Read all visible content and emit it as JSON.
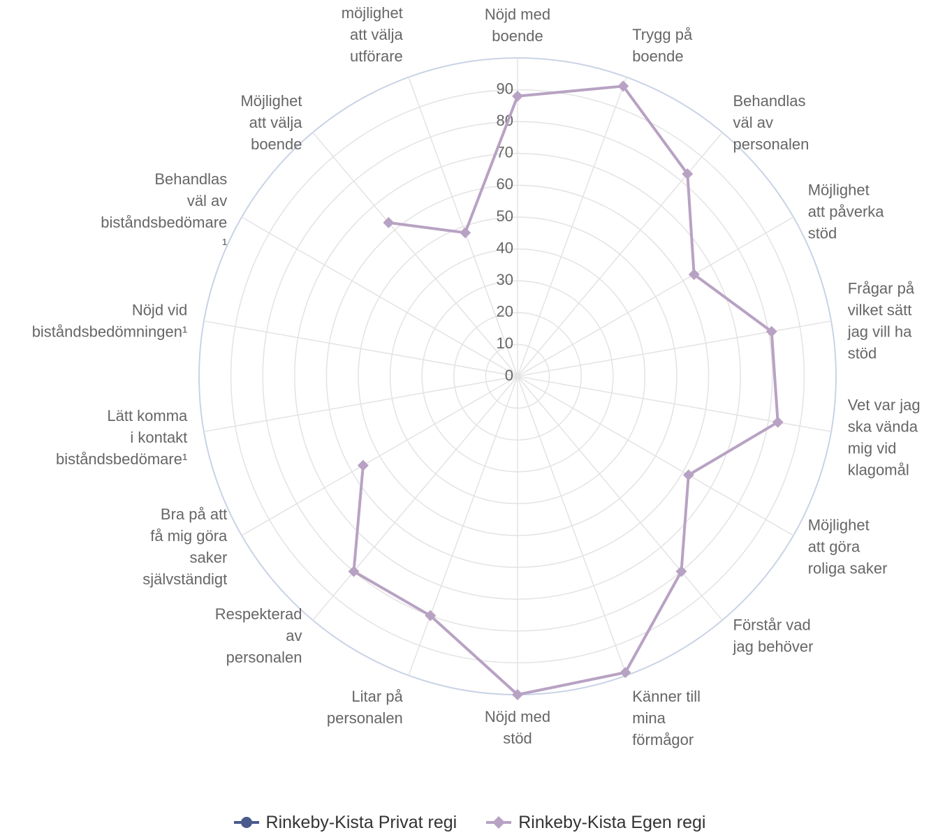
{
  "chart_data": {
    "type": "radar",
    "title": "",
    "categories": [
      "Nöjd med boende",
      "Trygg på boende",
      "Behandlas väl av personalen",
      "Möjlighet att påverka stöd",
      "Frågar på vilket sätt jag vill ha stöd",
      "Vet var jag ska vända mig vid klagomål",
      "Möjlighet att göra roliga saker",
      "Förstår vad jag behöver",
      "Känner till mina förmågor",
      "Nöjd med stöd",
      "Litar på personalen",
      "Respekterad av personalen",
      "Bra på att få mig göra saker självständigt",
      "Lätt komma i kontakt biståndsbedömare¹",
      "Nöjd vid biståndsbedömningen¹",
      "Behandlas väl av biståndsbedömare ¹",
      "Möjlighet att välja boende",
      "Information om möjlighet att välja utförare"
    ],
    "category_lines": [
      [
        "Nöjd med",
        "boende"
      ],
      [
        "Trygg på",
        "boende"
      ],
      [
        "Behandlas",
        "väl av",
        "personalen"
      ],
      [
        "Möjlighet",
        "att påverka",
        "stöd"
      ],
      [
        "Frågar på",
        "vilket sätt",
        "jag vill ha",
        "stöd"
      ],
      [
        "Vet var jag",
        "ska vända",
        "mig vid",
        "klagomål"
      ],
      [
        "Möjlighet",
        "att göra",
        "roliga saker"
      ],
      [
        "Förstår vad",
        "jag behöver"
      ],
      [
        "Känner till",
        "mina",
        "förmågor"
      ],
      [
        "Nöjd med",
        "stöd"
      ],
      [
        "Litar på",
        "personalen"
      ],
      [
        "Respekterad",
        "av",
        "personalen"
      ],
      [
        "Bra på att",
        "få mig göra",
        "saker",
        "självständigt"
      ],
      [
        "Lätt komma",
        "i kontakt",
        "biståndsbedömare¹"
      ],
      [
        "Nöjd vid",
        "biståndsbedömningen¹"
      ],
      [
        "Behandlas",
        "väl av",
        "biståndsbedömare",
        "¹"
      ],
      [
        "Möjlighet",
        "att välja",
        "boende"
      ],
      [
        "Information",
        "om",
        "möjlighet",
        "att välja",
        "utförare"
      ]
    ],
    "r_ticks": [
      0,
      10,
      20,
      30,
      40,
      50,
      60,
      70,
      80,
      90
    ],
    "r_range": [
      0,
      100
    ],
    "grid": true,
    "legend_position": "bottom",
    "series": [
      {
        "name": "Rinkeby-Kista Privat regi",
        "color": "#4a5a8c",
        "marker": "circle",
        "values": [
          null,
          null,
          null,
          null,
          null,
          null,
          null,
          null,
          null,
          null,
          null,
          null,
          null,
          null,
          null,
          null,
          null,
          null
        ]
      },
      {
        "name": "Rinkeby-Kista Egen regi",
        "color": "#b8a2c3",
        "marker": "diamond",
        "values": [
          88,
          97,
          83,
          64,
          81,
          83,
          62,
          80,
          99,
          100,
          80,
          80,
          56,
          null,
          null,
          null,
          63,
          48
        ]
      }
    ]
  },
  "legend": {
    "items": [
      {
        "label": "Rinkeby-Kista Privat regi",
        "color": "#4a5a8c",
        "marker": "circle"
      },
      {
        "label": "Rinkeby-Kista Egen regi",
        "color": "#b8a2c3",
        "marker": "diamond"
      }
    ]
  }
}
